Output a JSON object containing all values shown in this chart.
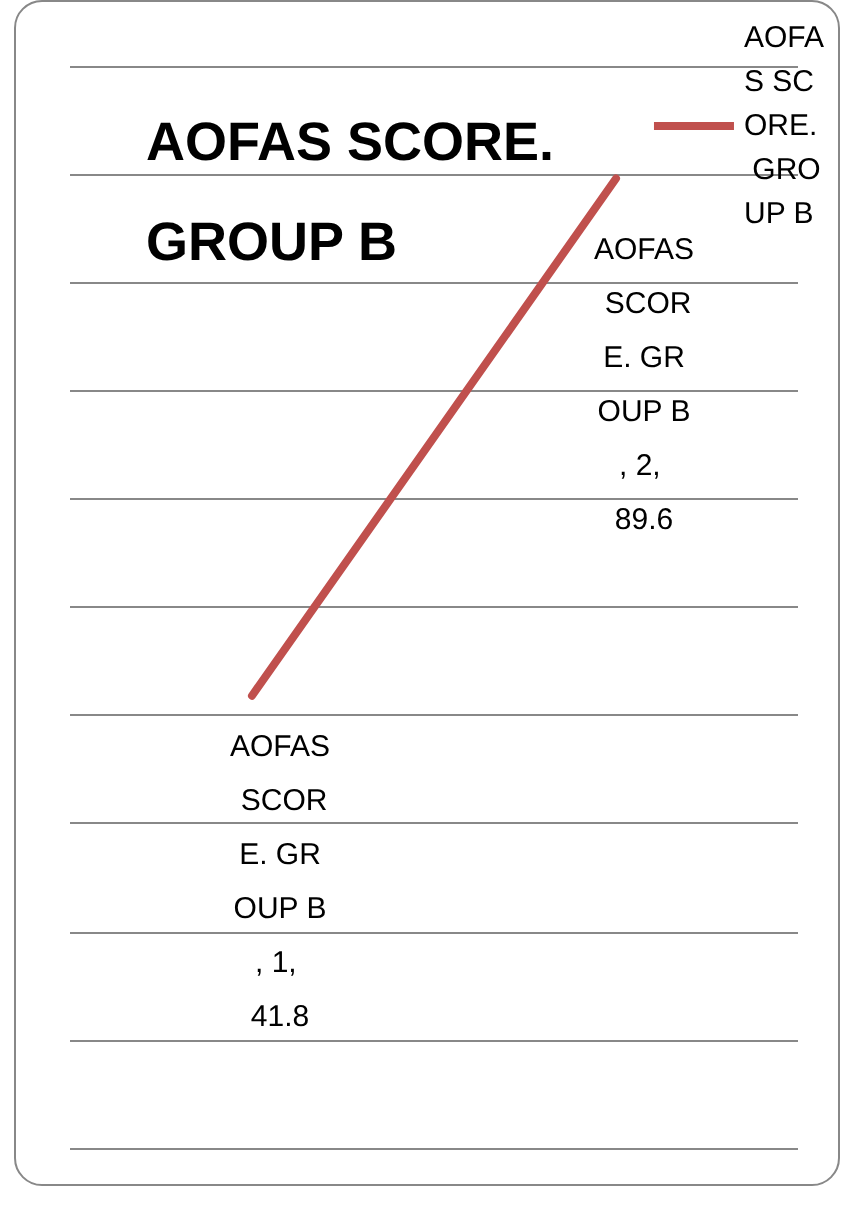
{
  "chart_data": {
    "type": "line",
    "title": "AOFAS SCORE. GROUP B",
    "categories": [
      null,
      null
    ],
    "series": [
      {
        "name": "AOFAS SCORE. GROUP B",
        "color": "#c0504d",
        "values": [
          41.8,
          89.6
        ],
        "value_labels": [
          "AOFAS SCORE. GROUP B, 1, 41.8",
          "AOFAS SCORE. GROUP B, 2, 89.6"
        ]
      }
    ],
    "ylim": [
      0,
      100
    ],
    "yticks": [
      0,
      10,
      20,
      30,
      40,
      50,
      60,
      70,
      80,
      90,
      100
    ],
    "grid": "y",
    "legend": "top right",
    "tick_labels": false,
    "marker": "none"
  }
}
